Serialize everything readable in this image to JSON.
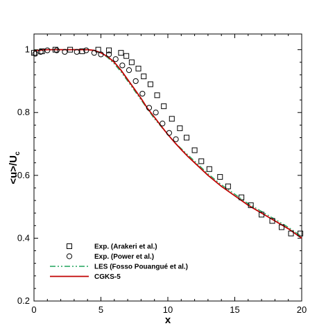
{
  "chart_data": {
    "type": "line",
    "xlabel": "x",
    "ylabel": "<u>/U",
    "ylabel_subscript": "c",
    "xlim": [
      0,
      20
    ],
    "ylim": [
      0.2,
      1.05
    ],
    "xticks": [
      0,
      5,
      10,
      15,
      20
    ],
    "yticks": [
      0.2,
      0.4,
      0.6,
      0.8,
      1
    ],
    "xtick_labels": [
      "0",
      "5",
      "10",
      "15",
      "20"
    ],
    "ytick_labels": [
      "0.2",
      "0.4",
      "0.6",
      "0.8",
      "1"
    ],
    "grid": false,
    "legend_position": "bottom-left",
    "series": [
      {
        "name": "Exp. (Arakeri et al.)",
        "marker": "square",
        "x": [
          0,
          0.6,
          1.6,
          2.7,
          3.6,
          4.8,
          5.6,
          6.5,
          6.9,
          7.3,
          7.8,
          8.2,
          8.7,
          9.2,
          9.7,
          10.3,
          10.9,
          11.4,
          12.0,
          12.5,
          13.1,
          13.9,
          14.5,
          15.5,
          16.2,
          17.0,
          17.8,
          18.5,
          19.2,
          19.9
        ],
        "y": [
          0.99,
          0.995,
          1.0,
          1.0,
          0.995,
          1.0,
          0.998,
          0.99,
          0.98,
          0.96,
          0.94,
          0.915,
          0.89,
          0.855,
          0.82,
          0.78,
          0.75,
          0.72,
          0.68,
          0.645,
          0.62,
          0.595,
          0.565,
          0.53,
          0.505,
          0.475,
          0.455,
          0.435,
          0.415,
          0.415
        ]
      },
      {
        "name": "Exp. (Power et al.)",
        "marker": "circle",
        "x": [
          0.1,
          0.5,
          1.0,
          1.7,
          2.3,
          3.2,
          3.9,
          4.5,
          5.0,
          5.6,
          6.1,
          6.6,
          7.1,
          7.6,
          8.1,
          8.6,
          9.1,
          9.6,
          10.1,
          10.6
        ],
        "y": [
          0.987,
          0.993,
          0.998,
          0.998,
          0.993,
          0.993,
          0.998,
          0.99,
          0.985,
          0.985,
          0.97,
          0.95,
          0.935,
          0.9,
          0.86,
          0.815,
          0.8,
          0.765,
          0.735,
          0.715
        ]
      },
      {
        "name": "LES (Fosso Pouangué et al.)",
        "line_style": "dash-dot-dot",
        "color": "#1fa35a",
        "x": [
          0,
          1,
          2,
          3,
          4,
          4.5,
          5,
          5.5,
          6,
          6.5,
          7,
          7.5,
          8,
          8.5,
          9,
          9.5,
          10,
          10.5,
          11,
          11.5,
          12,
          13,
          14,
          15,
          16,
          17,
          18,
          19,
          20
        ],
        "y": [
          0.998,
          1.0,
          1.0,
          1.0,
          1.0,
          0.998,
          0.99,
          0.975,
          0.955,
          0.93,
          0.9,
          0.87,
          0.84,
          0.81,
          0.78,
          0.755,
          0.73,
          0.705,
          0.685,
          0.665,
          0.645,
          0.605,
          0.57,
          0.54,
          0.51,
          0.485,
          0.46,
          0.435,
          0.405
        ]
      },
      {
        "name": "CGKS-5",
        "line_style": "solid",
        "color": "#c00000",
        "x": [
          0,
          1,
          2,
          3,
          4,
          4.5,
          5,
          5.5,
          6,
          6.5,
          7,
          7.5,
          8,
          8.5,
          9,
          9.5,
          10,
          10.5,
          11,
          11.5,
          12,
          13,
          14,
          15,
          16,
          17,
          18,
          19,
          20
        ],
        "y": [
          0.997,
          1.0,
          1.0,
          1.0,
          1.0,
          0.998,
          0.99,
          0.978,
          0.96,
          0.935,
          0.905,
          0.875,
          0.845,
          0.812,
          0.785,
          0.757,
          0.73,
          0.705,
          0.682,
          0.66,
          0.64,
          0.6,
          0.565,
          0.535,
          0.505,
          0.48,
          0.455,
          0.43,
          0.4
        ]
      }
    ]
  }
}
